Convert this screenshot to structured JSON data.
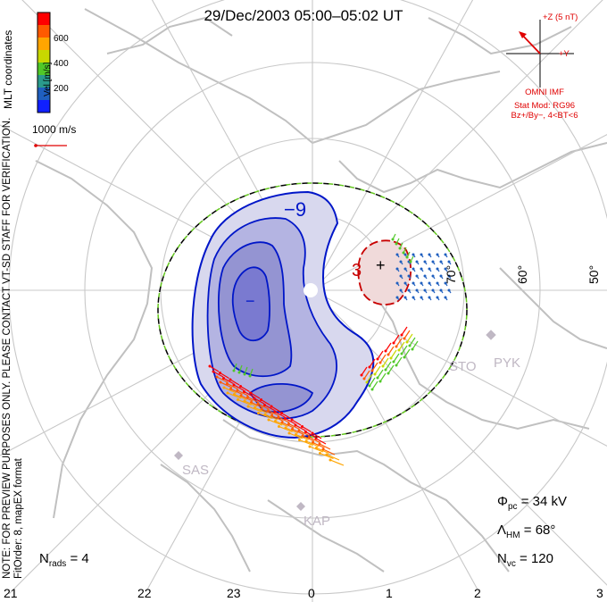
{
  "title": "29/Dec/2003 05:00–05:02 UT",
  "side_note": {
    "line1": "NOTE: FOR PREVIEW PURPOSES ONLY. PLEASE CONTACT VT-SD STAFF FOR VERIFICATION.",
    "line2": "FitOrder: 8, mapEX format"
  },
  "colorbar": {
    "title": "Vel [m/s]",
    "coordinates": "MLT coordinates",
    "ticks": [
      "600",
      "400",
      "200"
    ],
    "colors": [
      "#ff0000",
      "#ff5a00",
      "#ffa500",
      "#c8d800",
      "#50c828",
      "#2a9a8c",
      "#1f5fbf",
      "#1020ff"
    ]
  },
  "vector_scale": {
    "label": "1000 m/s"
  },
  "imf": {
    "z_label": "+Z (5 nT)",
    "y_label": "+Y",
    "source": "OMNI IMF",
    "stat_mod": "Stat Mod: RG96",
    "condition": "Bz+/By−, 4<BT<6",
    "color": "#e00000"
  },
  "stats": {
    "phi_pc": "34 kV",
    "lambda_hm": "68°",
    "n_vc": "120",
    "n_rads": "4"
  },
  "mlt_labels": [
    "21",
    "22",
    "23",
    "0",
    "1",
    "2",
    "3"
  ],
  "lat_labels": [
    "70°",
    "60°",
    "50°"
  ],
  "stations": [
    "STO",
    "PYK",
    "SAS",
    "KAP"
  ],
  "contours": {
    "negative_label": "−9",
    "positive_label": "3",
    "minus_mark": "−",
    "plus_mark": "+"
  },
  "colors": {
    "negative": "#0016c8",
    "positive": "#c80000",
    "land": "#c0c0c0",
    "grid": "#c8c8c8",
    "hm_boundary": "#64c81e"
  }
}
